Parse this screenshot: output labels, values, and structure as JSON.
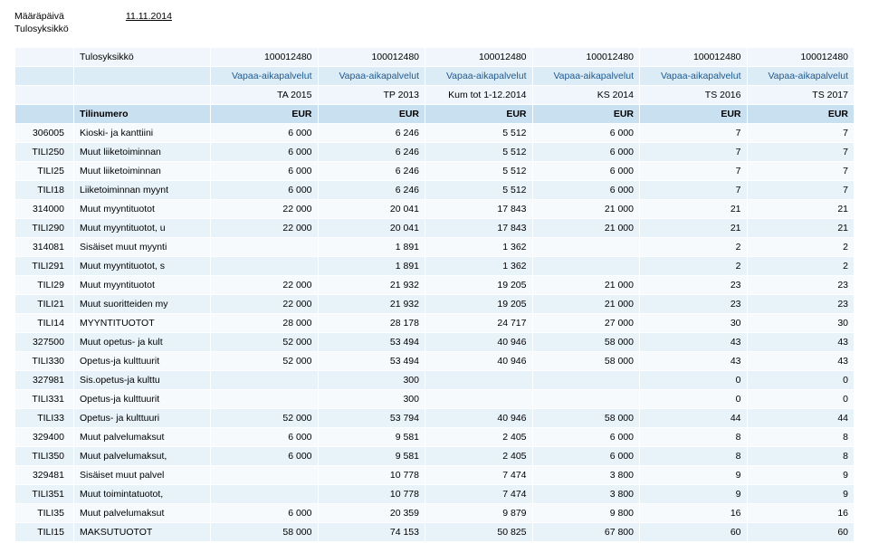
{
  "header": {
    "date_label": "Määräpäivä",
    "date_value": "11.11.2014",
    "unit_label": "Tulosyksikkö"
  },
  "table": {
    "row_h0": {
      "label": "Tulosyksikkö",
      "cells": [
        "100012480",
        "100012480",
        "100012480",
        "100012480",
        "100012480",
        "100012480"
      ]
    },
    "row_h1": {
      "cells": [
        "Vapaa-aikapalvelut",
        "Vapaa-aikapalvelut",
        "Vapaa-aikapalvelut",
        "Vapaa-aikapalvelut",
        "Vapaa-aikapalvelut",
        "Vapaa-aikapalvelut"
      ]
    },
    "row_h2": {
      "cells": [
        "TA 2015",
        "TP 2013",
        "Kum tot 1-12.2014",
        "KS 2014",
        "TS 2016",
        "TS 2017"
      ]
    },
    "row_h3": {
      "label": "Tilinumero",
      "cells": [
        "EUR",
        "EUR",
        "EUR",
        "EUR",
        "EUR",
        "EUR"
      ]
    },
    "rows": [
      {
        "code": "306005",
        "name": "Kioski- ja kanttiini",
        "v": [
          "6 000",
          "6 246",
          "5 512",
          "6 000",
          "7",
          "7"
        ]
      },
      {
        "code": "TILI250",
        "name": "Muut liiketoiminnan",
        "v": [
          "6 000",
          "6 246",
          "5 512",
          "6 000",
          "7",
          "7"
        ]
      },
      {
        "code": "TILI25",
        "name": "Muut liiketoiminnan",
        "v": [
          "6 000",
          "6 246",
          "5 512",
          "6 000",
          "7",
          "7"
        ]
      },
      {
        "code": "TILI18",
        "name": "Liiketoiminnan myynt",
        "v": [
          "6 000",
          "6 246",
          "5 512",
          "6 000",
          "7",
          "7"
        ]
      },
      {
        "code": "314000",
        "name": "Muut myyntituotot",
        "v": [
          "22 000",
          "20 041",
          "17 843",
          "21 000",
          "21",
          "21"
        ]
      },
      {
        "code": "TILI290",
        "name": "Muut myyntituotot, u",
        "v": [
          "22 000",
          "20 041",
          "17 843",
          "21 000",
          "21",
          "21"
        ]
      },
      {
        "code": "314081",
        "name": "Sisäiset muut myynti",
        "v": [
          "",
          "1 891",
          "1 362",
          "",
          "2",
          "2"
        ]
      },
      {
        "code": "TILI291",
        "name": "Muut myyntituotot, s",
        "v": [
          "",
          "1 891",
          "1 362",
          "",
          "2",
          "2"
        ]
      },
      {
        "code": "TILI29",
        "name": "Muut myyntituotot",
        "v": [
          "22 000",
          "21 932",
          "19 205",
          "21 000",
          "23",
          "23"
        ]
      },
      {
        "code": "TILI21",
        "name": "Muut suoritteiden my",
        "v": [
          "22 000",
          "21 932",
          "19 205",
          "21 000",
          "23",
          "23"
        ]
      },
      {
        "code": "TILI14",
        "name": "MYYNTITUOTOT",
        "v": [
          "28 000",
          "28 178",
          "24 717",
          "27 000",
          "30",
          "30"
        ]
      },
      {
        "code": "327500",
        "name": "Muut opetus- ja kult",
        "v": [
          "52 000",
          "53 494",
          "40 946",
          "58 000",
          "43",
          "43"
        ]
      },
      {
        "code": "TILI330",
        "name": "Opetus-ja kulttuurit",
        "v": [
          "52 000",
          "53 494",
          "40 946",
          "58 000",
          "43",
          "43"
        ]
      },
      {
        "code": "327981",
        "name": "Sis.opetus-ja kulttu",
        "v": [
          "",
          "300",
          "",
          "",
          "0",
          "0"
        ]
      },
      {
        "code": "TILI331",
        "name": "Opetus-ja kulttuurit",
        "v": [
          "",
          "300",
          "",
          "",
          "0",
          "0"
        ]
      },
      {
        "code": "TILI33",
        "name": "Opetus- ja kulttuuri",
        "v": [
          "52 000",
          "53 794",
          "40 946",
          "58 000",
          "44",
          "44"
        ]
      },
      {
        "code": "329400",
        "name": "Muut palvelumaksut",
        "v": [
          "6 000",
          "9 581",
          "2 405",
          "6 000",
          "8",
          "8"
        ]
      },
      {
        "code": "TILI350",
        "name": "Muut palvelumaksut,",
        "v": [
          "6 000",
          "9 581",
          "2 405",
          "6 000",
          "8",
          "8"
        ]
      },
      {
        "code": "329481",
        "name": "Sisäiset muut palvel",
        "v": [
          "",
          "10 778",
          "7 474",
          "3 800",
          "9",
          "9"
        ]
      },
      {
        "code": "TILI351",
        "name": "Muut toimintatuotot,",
        "v": [
          "",
          "10 778",
          "7 474",
          "3 800",
          "9",
          "9"
        ]
      },
      {
        "code": "TILI35",
        "name": "Muut palvelumaksut",
        "v": [
          "6 000",
          "20 359",
          "9 879",
          "9 800",
          "16",
          "16"
        ]
      },
      {
        "code": "TILI15",
        "name": "MAKSUTUOTOT",
        "v": [
          "58 000",
          "74 153",
          "50 825",
          "67 800",
          "60",
          "60"
        ]
      }
    ]
  }
}
